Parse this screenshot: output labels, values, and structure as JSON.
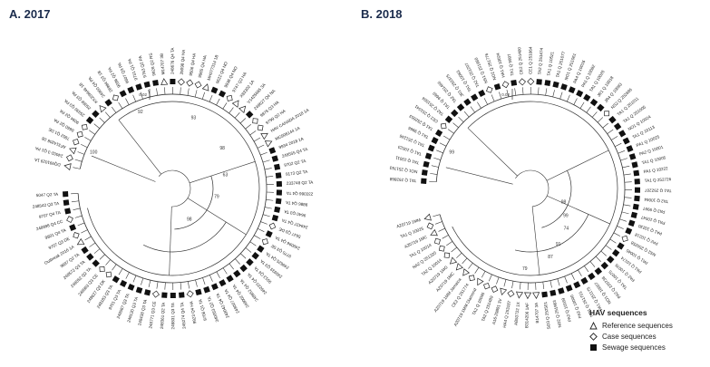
{
  "panels": [
    {
      "title": "A. 2017",
      "scale_label": "0.02",
      "bootstrap": [
        "100",
        "92",
        "93",
        "98",
        "63",
        "79",
        "98"
      ],
      "leaves": [
        {
          "label": "DQ991029 1A",
          "type": "ref"
        },
        {
          "label": "24002-3 Q1 PA",
          "type": "case"
        },
        {
          "label": "AF314208 1B",
          "type": "ref"
        },
        {
          "label": "7852 Q1 DE",
          "type": "case"
        },
        {
          "label": "8660 Q2 PA",
          "type": "case"
        },
        {
          "label": "9094 Q2 PA",
          "type": "case"
        },
        {
          "label": "25930 Q3 PA",
          "type": "sew"
        },
        {
          "label": "25068 Q3 PA",
          "type": "sew"
        },
        {
          "label": "KX209646 1B",
          "type": "ref"
        },
        {
          "label": "24960 Q4 PA",
          "type": "sew"
        },
        {
          "label": "26994 Q3 1B",
          "type": "case"
        },
        {
          "label": "9096 Q2 PA",
          "type": "sew"
        },
        {
          "label": "9607 Q3 PA",
          "type": "sew"
        },
        {
          "label": "9731 Q1 PA",
          "type": "sew"
        },
        {
          "label": "9763 Q2 PA",
          "type": "sew"
        },
        {
          "label": "9928 Q2 RS",
          "type": "sew"
        },
        {
          "label": "M14707 3B",
          "type": "ref"
        },
        {
          "label": "248676 Q4 TA",
          "type": "sew"
        },
        {
          "label": "25098 Q4 HA",
          "type": "case"
        },
        {
          "label": "9506 Q4 HA",
          "type": "case"
        },
        {
          "label": "9965 Q4 HA",
          "type": "case"
        },
        {
          "label": "MH077314 1B",
          "type": "ref"
        },
        {
          "label": "9622 Q4 NO",
          "type": "sew"
        },
        {
          "label": "9936 Q4 NO",
          "type": "sew"
        },
        {
          "label": "9747 Q2 HA",
          "type": "case"
        },
        {
          "label": "X83302 1A",
          "type": "ref"
        },
        {
          "label": "V1425665 3A",
          "type": "ref"
        },
        {
          "label": "249627 Q4 NA",
          "type": "sew"
        },
        {
          "label": "9876 Q3 HA",
          "type": "case"
        },
        {
          "label": "9799 Q2 HA",
          "type": "case"
        },
        {
          "label": "HAV CANADA 2018 1A",
          "type": "ref"
        },
        {
          "label": "MG906144 1A",
          "type": "ref"
        },
        {
          "label": "9934 2018 1A",
          "type": "sew"
        },
        {
          "label": "249555 Q4 TA",
          "type": "sew"
        },
        {
          "label": "9702 Q2 TA",
          "type": "sew"
        },
        {
          "label": "9173 Q2 TA",
          "type": "sew"
        },
        {
          "label": "233748 Q2 TA",
          "type": "sew"
        },
        {
          "label": "233366 Q4 TA",
          "type": "sew"
        },
        {
          "label": "9886 Q4 TA",
          "type": "sew"
        },
        {
          "label": "9640 Q3 TA",
          "type": "sew"
        },
        {
          "label": "249437 Q4 TA",
          "type": "sew"
        },
        {
          "label": "5647 Q3 DE",
          "type": "case"
        },
        {
          "label": "249096 Q4 TA",
          "type": "sew"
        },
        {
          "label": "9775 Q3 SE",
          "type": "case"
        },
        {
          "label": "249625 Q4 TA",
          "type": "sew"
        },
        {
          "label": "240933 Q3 TA",
          "type": "sew"
        },
        {
          "label": "9913 Q4 TA",
          "type": "sew"
        },
        {
          "label": "249220 Q4 TA",
          "type": "sew"
        },
        {
          "label": "248952 Q4 TA",
          "type": "sew"
        },
        {
          "label": "249002 Q4 TA",
          "type": "sew"
        },
        {
          "label": "249007 Q4 TA",
          "type": "sew"
        },
        {
          "label": "249042 Q4 TA",
          "type": "sew"
        },
        {
          "label": "240053 Q2 TA",
          "type": "sew"
        },
        {
          "label": "9706 Q1 TA",
          "type": "sew"
        },
        {
          "label": "9923 Q4 HA",
          "type": "case"
        },
        {
          "label": "249274 Q4 TA",
          "type": "sew"
        },
        {
          "label": "248831 Q3 TA",
          "type": "sew"
        },
        {
          "label": "248361 Q2 TA",
          "type": "sew"
        },
        {
          "label": "248771 Q3 CE",
          "type": "case"
        },
        {
          "label": "248438 Q3 TA",
          "type": "sew"
        },
        {
          "label": "249120 Q3 TA",
          "type": "sew"
        },
        {
          "label": "249567 Q3 TA",
          "type": "sew"
        },
        {
          "label": "9701 Q3 TA",
          "type": "sew"
        },
        {
          "label": "248183 Q3 TA",
          "type": "sew"
        },
        {
          "label": "249627 Q3 DK",
          "type": "case"
        },
        {
          "label": "248963 Q3 CE",
          "type": "case"
        },
        {
          "label": "249052 Q2 TA",
          "type": "sew"
        },
        {
          "label": "248572 Q3 TA",
          "type": "sew"
        },
        {
          "label": "9897 Q2 TA",
          "type": "sew"
        },
        {
          "label": "Outbreak 2016 1A",
          "type": "ref"
        },
        {
          "label": "9707 Q3 DE",
          "type": "case"
        },
        {
          "label": "9801 Q4 TA",
          "type": "sew"
        },
        {
          "label": "248998 Q4 CC",
          "type": "case"
        },
        {
          "label": "9707 Q4 TA",
          "type": "sew"
        },
        {
          "label": "248542 Q3 TA",
          "type": "sew"
        },
        {
          "label": "5047 Q2 TA",
          "type": "sew"
        }
      ]
    },
    {
      "title": "B. 2018",
      "scale_label": "0.02",
      "bootstrap": [
        "99",
        "79",
        "87",
        "91",
        "74",
        "99",
        "98"
      ],
      "leaves": [
        {
          "label": "TA1 Q 252868",
          "type": "sew"
        },
        {
          "label": "NO1 Q 251763",
          "type": "sew"
        },
        {
          "label": "TA1 Q 10011",
          "type": "sew"
        },
        {
          "label": "TA1 Q 10023",
          "type": "sew"
        },
        {
          "label": "TA1 Q 251246",
          "type": "sew"
        },
        {
          "label": "TA1 Q 9966",
          "type": "sew"
        },
        {
          "label": "TA1 Q 252653",
          "type": "sew"
        },
        {
          "label": "CE2 Q 251041",
          "type": "case"
        },
        {
          "label": "TA2 Q 251504",
          "type": "sew"
        },
        {
          "label": "TA1 Q 9660",
          "type": "sew"
        },
        {
          "label": "TA2 Q 251466",
          "type": "sew"
        },
        {
          "label": "JR1 Q 250375",
          "type": "sew"
        },
        {
          "label": "TA1 Q 10063",
          "type": "sew"
        },
        {
          "label": "TA2 Q 251207",
          "type": "sew"
        },
        {
          "label": "NS1 Q 251960",
          "type": "case"
        },
        {
          "label": "NO2 Q 251776",
          "type": "sew"
        },
        {
          "label": "HA1 Q 10024",
          "type": "case"
        },
        {
          "label": "TA1 Q 9997",
          "type": "sew"
        },
        {
          "label": "CE2 Q 251400",
          "type": "case"
        },
        {
          "label": "CE1 Q 251064",
          "type": "case"
        },
        {
          "label": "TA2 Q 251474",
          "type": "sew"
        },
        {
          "label": "TA1 Q 10521",
          "type": "sew"
        },
        {
          "label": "TA1 Q 251077",
          "type": "sew"
        },
        {
          "label": "NO1 Q 251061",
          "type": "sew"
        },
        {
          "label": "PA4 Q 10016",
          "type": "sew"
        },
        {
          "label": "PA1 Q 10082",
          "type": "sew"
        },
        {
          "label": "TA1 Q 10026",
          "type": "sew"
        },
        {
          "label": "JR1 Q 10018",
          "type": "sew"
        },
        {
          "label": "JR4 Q 10093",
          "type": "sew"
        },
        {
          "label": "NS2 Q 252696",
          "type": "case"
        },
        {
          "label": "TA1 Q 251011",
          "type": "sew"
        },
        {
          "label": "TA1 Q 251005",
          "type": "sew"
        },
        {
          "label": "NO1 Q 10024",
          "type": "sew"
        },
        {
          "label": "TA1 Q 10113",
          "type": "sew"
        },
        {
          "label": "PA1 Q 10025",
          "type": "sew"
        },
        {
          "label": "PA2 Q 10001",
          "type": "sew"
        },
        {
          "label": "TA1 Q 10005",
          "type": "sew"
        },
        {
          "label": "PA1 Q 10222",
          "type": "sew"
        },
        {
          "label": "TA1 Q 252726",
          "type": "sew"
        },
        {
          "label": "TA1 Q 252207",
          "type": "sew"
        },
        {
          "label": "TA2 Q 10064",
          "type": "sew"
        },
        {
          "label": "PA3 Q 9997",
          "type": "sew"
        },
        {
          "label": "PA1 Q 10047",
          "type": "sew"
        },
        {
          "label": "PA1 Q 10230",
          "type": "sew"
        },
        {
          "label": "PA2 Q 10218",
          "type": "sew"
        },
        {
          "label": "NS2 Q 250258",
          "type": "case"
        },
        {
          "label": "PA1 Q 10045",
          "type": "sew"
        },
        {
          "label": "PA1 Q 10174",
          "type": "sew"
        },
        {
          "label": "PA2 Q 10076",
          "type": "sew"
        },
        {
          "label": "TA1 Q 10075",
          "type": "sew"
        },
        {
          "label": "PA2 Q 220738",
          "type": "sew"
        },
        {
          "label": "NO1 Q 10007",
          "type": "sew"
        },
        {
          "label": "PA1 Q 251175",
          "type": "sew"
        },
        {
          "label": "NO1 Q 251701",
          "type": "sew"
        },
        {
          "label": "PA2 Q 10000",
          "type": "sew"
        },
        {
          "label": "PA2 Q 10169",
          "type": "sew"
        },
        {
          "label": "NO2 Q 251963",
          "type": "sew"
        },
        {
          "label": "SO3 Q 252501",
          "type": "sew"
        },
        {
          "label": "B14707 3A",
          "type": "ref"
        },
        {
          "label": "B314206 1AF",
          "type": "ref"
        },
        {
          "label": "AB53722 1X",
          "type": "ref"
        },
        {
          "label": "HA4 Q 253187",
          "type": "case"
        },
        {
          "label": "A16-20801 3V",
          "type": "ref"
        },
        {
          "label": "TA2 Q 251489",
          "type": "case"
        },
        {
          "label": "TA2 Q 10046",
          "type": "case"
        },
        {
          "label": "A20719 1MM Diamond",
          "type": "ref"
        },
        {
          "label": "CE2 Q 251774",
          "type": "case"
        },
        {
          "label": "AZ0719 1MM Jamaica",
          "type": "ref"
        },
        {
          "label": "AZ0719 1MC",
          "type": "ref"
        },
        {
          "label": "AZ0719 1MG",
          "type": "ref"
        },
        {
          "label": "TA2 Q 10014",
          "type": "case"
        },
        {
          "label": "NA2 Q 251320",
          "type": "case"
        },
        {
          "label": "TA1 Q 10014",
          "type": "case"
        },
        {
          "label": "AZ0719 1MC",
          "type": "ref"
        },
        {
          "label": "TA1 Q 10025",
          "type": "case"
        },
        {
          "label": "AZ0719 1MM",
          "type": "ref"
        }
      ]
    }
  ],
  "legend": {
    "title": "HAV sequences",
    "items": [
      {
        "label": "Reference sequences",
        "symbol": "triangle"
      },
      {
        "label": "Case sequences",
        "symbol": "diamond"
      },
      {
        "label": "Sewage sequences",
        "symbol": "square"
      }
    ]
  }
}
